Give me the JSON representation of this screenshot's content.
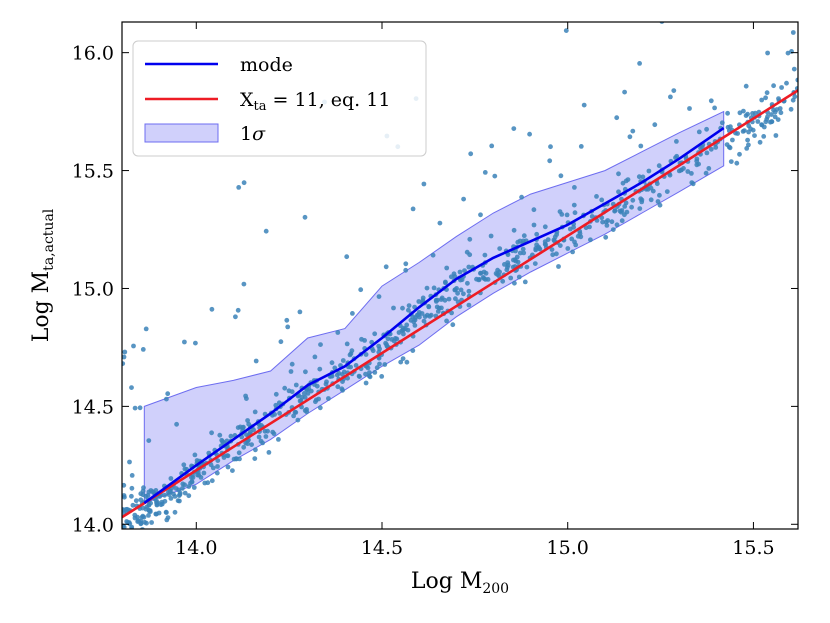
{
  "chart_data": {
    "type": "scatter",
    "xlabel": {
      "base": "Log M",
      "sub": "200"
    },
    "ylabel": {
      "base": "Log M",
      "sub": "ta,actual"
    },
    "xlim": [
      13.8,
      15.62
    ],
    "ylim": [
      13.98,
      16.13
    ],
    "xticks": [
      14.0,
      14.5,
      15.0,
      15.5
    ],
    "xtick_labels": [
      "14.0",
      "14.5",
      "15.0",
      "15.5"
    ],
    "yticks": [
      14.0,
      14.5,
      15.0,
      15.5,
      16.0
    ],
    "ytick_labels": [
      "14.0",
      "14.5",
      "15.0",
      "15.5",
      "16.0"
    ],
    "legend": {
      "position": "top-left",
      "entries": [
        {
          "kind": "line",
          "color": "#0000ee",
          "label": "mode"
        },
        {
          "kind": "line",
          "color": "#ee1c25",
          "label_base": "X",
          "label_sub": "ta",
          "label_rest": " = 11,  eq. 11"
        },
        {
          "kind": "band",
          "color": "#8f8ff5",
          "label_base": "1",
          "label_sym": "σ"
        }
      ]
    },
    "series": [
      {
        "name": "mode",
        "kind": "line",
        "color": "#0000ee",
        "x": [
          13.86,
          14.0,
          14.1,
          14.2,
          14.3,
          14.4,
          14.5,
          14.6,
          14.7,
          14.8,
          14.9,
          15.0,
          15.1,
          15.2,
          15.3,
          15.42
        ],
        "y": [
          14.09,
          14.25,
          14.36,
          14.47,
          14.59,
          14.67,
          14.79,
          14.92,
          15.04,
          15.13,
          15.2,
          15.27,
          15.36,
          15.45,
          15.55,
          15.68
        ]
      },
      {
        "name": "X_ta = 11, eq. 11",
        "kind": "line",
        "color": "#ee1c25",
        "x": [
          13.8,
          15.62
        ],
        "y": [
          14.03,
          15.84
        ]
      },
      {
        "name": "1σ",
        "kind": "band",
        "color": "#8f8ff5",
        "x": [
          13.86,
          14.0,
          14.1,
          14.2,
          14.3,
          14.4,
          14.5,
          14.6,
          14.7,
          14.8,
          14.9,
          15.0,
          15.1,
          15.2,
          15.3,
          15.42
        ],
        "lower": [
          14.09,
          14.17,
          14.27,
          14.36,
          14.47,
          14.57,
          14.67,
          14.76,
          14.88,
          14.98,
          15.07,
          15.15,
          15.23,
          15.32,
          15.41,
          15.52
        ],
        "upper": [
          14.5,
          14.58,
          14.61,
          14.65,
          14.79,
          14.83,
          15.01,
          15.11,
          15.22,
          15.32,
          15.4,
          15.45,
          15.5,
          15.58,
          15.66,
          15.75
        ]
      },
      {
        "name": "clusters",
        "kind": "scatter",
        "color": "#3b82b8",
        "count": 900,
        "model": {
          "slope": 0.995,
          "intercept": 14.05,
          "x_ref": 13.8,
          "x_range": [
            13.8,
            15.62
          ],
          "scatter_sigma": 0.05,
          "outlier_fraction": 0.12
        }
      }
    ]
  }
}
